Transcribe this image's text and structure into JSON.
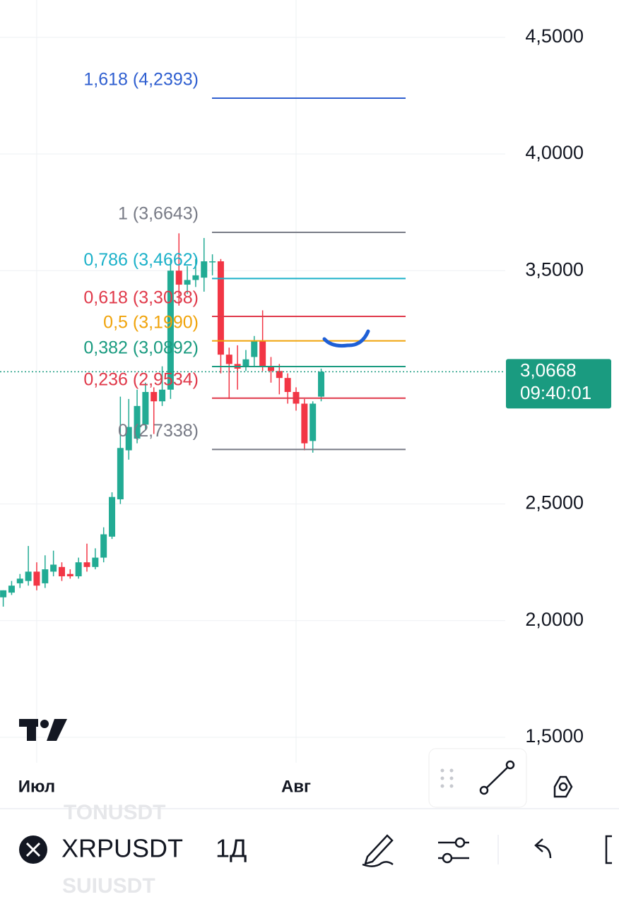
{
  "chart_data": {
    "type": "candlestick",
    "categories": [
      null,
      null,
      null,
      null,
      "Июл",
      null,
      null,
      null,
      null,
      null,
      null,
      null,
      null,
      null,
      null,
      null,
      null,
      null,
      null,
      null,
      null,
      null,
      null,
      null,
      null,
      null,
      null,
      null,
      null,
      null,
      null,
      null,
      null,
      null,
      null,
      "Авг",
      null,
      null,
      null
    ],
    "open": [
      2.1,
      2.12,
      2.16,
      2.17,
      2.21,
      2.16,
      2.21,
      2.23,
      2.2,
      2.19,
      2.25,
      2.23,
      2.27,
      2.36,
      2.52,
      2.73,
      2.78,
      2.84,
      2.98,
      2.94,
      2.99,
      3.5,
      3.44,
      3.46,
      3.47,
      3.54,
      3.54,
      3.14,
      3.1,
      3.09,
      3.13,
      3.2,
      3.09,
      3.07,
      3.04,
      2.98,
      2.93,
      2.77,
      2.96
    ],
    "high": [
      2.13,
      2.17,
      2.2,
      2.32,
      2.25,
      2.28,
      2.3,
      2.25,
      2.22,
      2.27,
      2.33,
      2.31,
      2.4,
      2.55,
      2.96,
      2.95,
      2.99,
      3.02,
      3.0,
      3.09,
      3.55,
      3.66,
      3.52,
      3.55,
      3.64,
      3.57,
      3.55,
      3.17,
      3.18,
      3.16,
      3.22,
      3.33,
      3.13,
      3.1,
      3.06,
      3.0,
      2.95,
      2.94,
      3.08
    ],
    "low": [
      2.06,
      2.11,
      2.14,
      2.15,
      2.13,
      2.14,
      2.19,
      2.17,
      2.18,
      2.18,
      2.21,
      2.22,
      2.25,
      2.35,
      2.5,
      2.69,
      2.76,
      2.82,
      2.8,
      2.92,
      2.95,
      3.35,
      3.4,
      3.43,
      3.41,
      3.48,
      3.06,
      2.95,
      2.99,
      3.07,
      3.09,
      3.07,
      3.02,
      2.97,
      2.93,
      2.9,
      2.73,
      2.72,
      2.94
    ],
    "close": [
      2.13,
      2.15,
      2.18,
      2.21,
      2.15,
      2.22,
      2.24,
      2.19,
      2.19,
      2.25,
      2.23,
      2.27,
      2.37,
      2.53,
      2.74,
      2.83,
      2.92,
      2.98,
      2.94,
      2.99,
      3.5,
      3.44,
      3.46,
      3.48,
      3.54,
      3.54,
      3.14,
      3.1,
      3.08,
      3.12,
      3.2,
      3.09,
      3.07,
      3.04,
      2.98,
      2.93,
      2.76,
      2.93,
      3.0668
    ],
    "up_color": "#22ab94",
    "down_color": "#f23645",
    "ylim": [
      1.4,
      4.66
    ],
    "yticks": [
      {
        "value": 1.5,
        "label": "1,5000"
      },
      {
        "value": 2,
        "label": "2,0000"
      },
      {
        "value": 2.5,
        "label": "2,5000"
      },
      {
        "value": 3.5,
        "label": "3,5000"
      },
      {
        "value": 4,
        "label": "4,0000"
      },
      {
        "value": 4.5,
        "label": "4,5000"
      }
    ],
    "grid": true,
    "fib_levels": [
      {
        "value": 4.2393,
        "label": "1,618 (4,2393)",
        "color": "#2f5fd0"
      },
      {
        "value": 3.6643,
        "label": "1 (3,6643)",
        "color": "#787b86"
      },
      {
        "value": 3.4662,
        "label": "0,786 (3,4662)",
        "color": "#1cb1c9"
      },
      {
        "value": 3.3038,
        "label": "0,618 (3,3038)",
        "color": "#e0394a"
      },
      {
        "value": 3.199,
        "label": "0,5 (3,1990)",
        "color": "#f0a30a"
      },
      {
        "value": 3.0892,
        "label": "0,382 (3,0892)",
        "color": "#1a9b80"
      },
      {
        "value": 2.9534,
        "label": "0,236 (2,9534)",
        "color": "#e0394a"
      },
      {
        "value": 2.7338,
        "label": "0 (2,7338)",
        "color": "#787b86"
      }
    ],
    "last_price": {
      "value": 3.0668,
      "label": "3,0668"
    },
    "countdown": "09:40:01"
  },
  "toolbar": {
    "symbol": "XRPUSDT",
    "interval": "1Д",
    "prev_symbol": "TONUSDT",
    "next_symbol": "SUIUSDT"
  }
}
